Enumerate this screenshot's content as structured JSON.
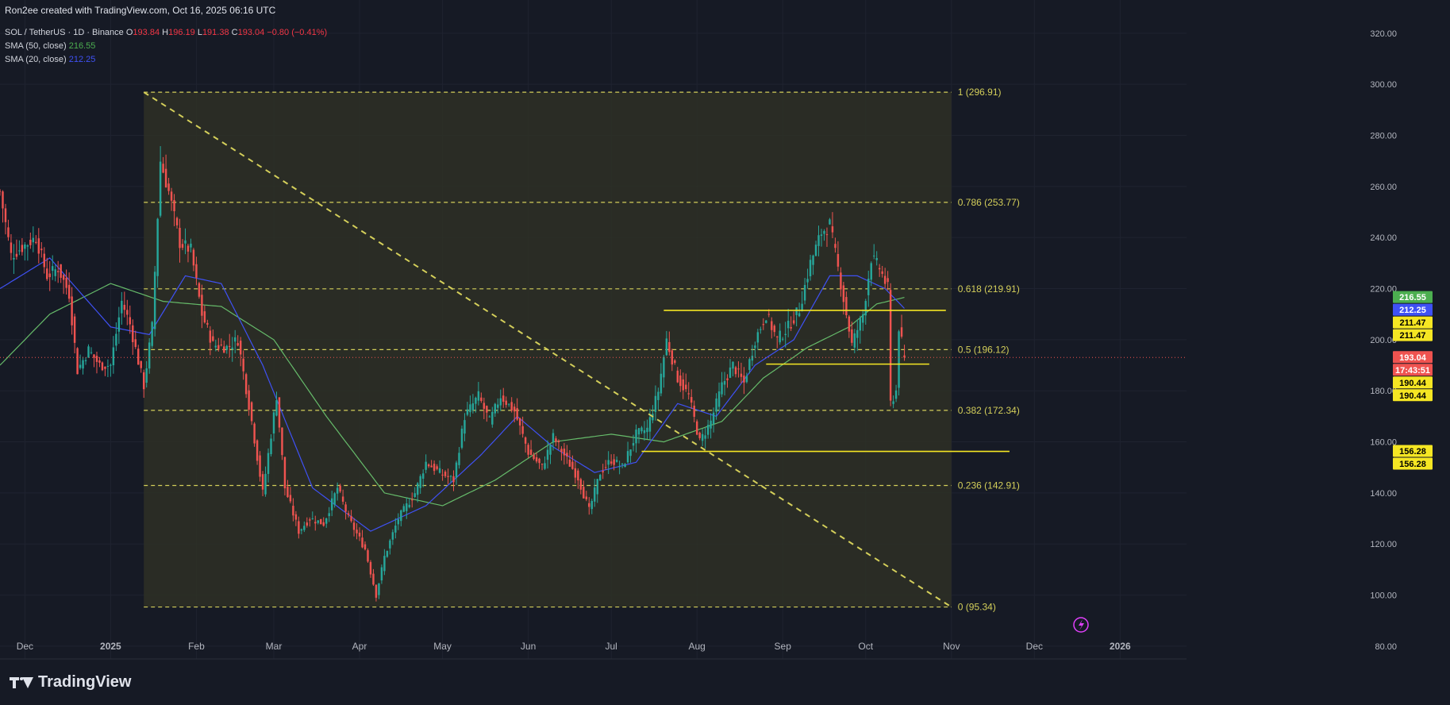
{
  "header": {
    "attribution": "Ron2ee created with TradingView.com, Oct 16, 2025 06:16 UTC",
    "symbol_line": "SOL / TetherUS · 1D · Binance",
    "ohlc": {
      "o_label": "O",
      "o": "193.84",
      "h_label": "H",
      "h": "196.19",
      "l_label": "L",
      "l": "191.38",
      "c_label": "C",
      "c": "193.04",
      "change": "−0.80 (−0.41%)"
    },
    "sma50_label": "SMA (50, close)",
    "sma50_value": "216.55",
    "sma20_label": "SMA (20, close)",
    "sma20_value": "212.25"
  },
  "brand": {
    "name": "TradingView"
  },
  "colors": {
    "background": "#161a25",
    "up": "#26a69a",
    "down": "#ef5350",
    "sma50": "#66bb6a",
    "sma20": "#3f51f5",
    "fib": "#d4cf5a",
    "fib_zone": "#2e3026",
    "support": "#f5e623",
    "price": "#ef5350"
  },
  "chart_data": {
    "type": "candlestick",
    "symbol": "SOL / TetherUS",
    "interval": "1D",
    "exchange": "Binance",
    "y_range": [
      75,
      333
    ],
    "y_ticks": [
      80,
      100,
      120,
      140,
      160,
      180,
      200,
      220,
      240,
      260,
      280,
      300,
      320
    ],
    "x_start": "2024-11-22",
    "x_end": "2026-01-25",
    "x_ticks": [
      {
        "date": "2024-12-01",
        "label": "Dec"
      },
      {
        "date": "2025-01-01",
        "label": "2025"
      },
      {
        "date": "2025-02-01",
        "label": "Feb"
      },
      {
        "date": "2025-03-01",
        "label": "Mar"
      },
      {
        "date": "2025-04-01",
        "label": "Apr"
      },
      {
        "date": "2025-05-01",
        "label": "May"
      },
      {
        "date": "2025-06-01",
        "label": "Jun"
      },
      {
        "date": "2025-07-01",
        "label": "Jul"
      },
      {
        "date": "2025-08-01",
        "label": "Aug"
      },
      {
        "date": "2025-09-01",
        "label": "Sep"
      },
      {
        "date": "2025-10-01",
        "label": "Oct"
      },
      {
        "date": "2025-11-01",
        "label": "Nov"
      },
      {
        "date": "2025-12-01",
        "label": "Dec"
      },
      {
        "date": "2026-01-01",
        "label": "2026"
      }
    ],
    "price_keypoints": [
      [
        "2024-11-22",
        258
      ],
      [
        "2024-11-26",
        233
      ],
      [
        "2024-12-01",
        237
      ],
      [
        "2024-12-05",
        240
      ],
      [
        "2024-12-09",
        225
      ],
      [
        "2024-12-13",
        228
      ],
      [
        "2024-12-17",
        218
      ],
      [
        "2024-12-20",
        188
      ],
      [
        "2024-12-24",
        196
      ],
      [
        "2024-12-28",
        190
      ],
      [
        "2025-01-01",
        190
      ],
      [
        "2025-01-05",
        215
      ],
      [
        "2025-01-08",
        206
      ],
      [
        "2025-01-13",
        182
      ],
      [
        "2025-01-16",
        205
      ],
      [
        "2025-01-19",
        270
      ],
      [
        "2025-01-22",
        258
      ],
      [
        "2025-01-26",
        238
      ],
      [
        "2025-01-30",
        235
      ],
      [
        "2025-02-03",
        210
      ],
      [
        "2025-02-07",
        198
      ],
      [
        "2025-02-12",
        197
      ],
      [
        "2025-02-16",
        200
      ],
      [
        "2025-02-21",
        168
      ],
      [
        "2025-02-25",
        140
      ],
      [
        "2025-03-02",
        178
      ],
      [
        "2025-03-05",
        142
      ],
      [
        "2025-03-10",
        125
      ],
      [
        "2025-03-14",
        130
      ],
      [
        "2025-03-19",
        128
      ],
      [
        "2025-03-24",
        142
      ],
      [
        "2025-03-28",
        130
      ],
      [
        "2025-04-03",
        118
      ],
      [
        "2025-04-07",
        100
      ],
      [
        "2025-04-10",
        115
      ],
      [
        "2025-04-15",
        130
      ],
      [
        "2025-04-21",
        140
      ],
      [
        "2025-04-25",
        152
      ],
      [
        "2025-04-30",
        148
      ],
      [
        "2025-05-05",
        145
      ],
      [
        "2025-05-09",
        170
      ],
      [
        "2025-05-14",
        178
      ],
      [
        "2025-05-18",
        168
      ],
      [
        "2025-05-22",
        178
      ],
      [
        "2025-05-27",
        172
      ],
      [
        "2025-06-01",
        156
      ],
      [
        "2025-06-06",
        150
      ],
      [
        "2025-06-10",
        162
      ],
      [
        "2025-06-15",
        153
      ],
      [
        "2025-06-19",
        146
      ],
      [
        "2025-06-23",
        133
      ],
      [
        "2025-06-27",
        148
      ],
      [
        "2025-07-01",
        153
      ],
      [
        "2025-07-05",
        150
      ],
      [
        "2025-07-10",
        163
      ],
      [
        "2025-07-14",
        165
      ],
      [
        "2025-07-18",
        180
      ],
      [
        "2025-07-21",
        200
      ],
      [
        "2025-07-25",
        185
      ],
      [
        "2025-07-29",
        178
      ],
      [
        "2025-08-02",
        160
      ],
      [
        "2025-08-06",
        168
      ],
      [
        "2025-08-10",
        182
      ],
      [
        "2025-08-14",
        190
      ],
      [
        "2025-08-18",
        183
      ],
      [
        "2025-08-22",
        200
      ],
      [
        "2025-08-26",
        210
      ],
      [
        "2025-08-30",
        200
      ],
      [
        "2025-09-03",
        205
      ],
      [
        "2025-09-07",
        212
      ],
      [
        "2025-09-11",
        230
      ],
      [
        "2025-09-15",
        242
      ],
      [
        "2025-09-18",
        245
      ],
      [
        "2025-09-22",
        222
      ],
      [
        "2025-09-26",
        198
      ],
      [
        "2025-09-30",
        210
      ],
      [
        "2025-10-03",
        232
      ],
      [
        "2025-10-06",
        228
      ],
      [
        "2025-10-09",
        220
      ],
      [
        "2025-10-10",
        175
      ],
      [
        "2025-10-12",
        180
      ],
      [
        "2025-10-13",
        205
      ],
      [
        "2025-10-15",
        193
      ]
    ],
    "sma50_keypoints": [
      [
        "2024-11-22",
        190
      ],
      [
        "2024-12-10",
        210
      ],
      [
        "2025-01-01",
        222
      ],
      [
        "2025-01-20",
        215
      ],
      [
        "2025-02-10",
        213
      ],
      [
        "2025-03-01",
        200
      ],
      [
        "2025-03-20",
        170
      ],
      [
        "2025-04-10",
        140
      ],
      [
        "2025-05-01",
        135
      ],
      [
        "2025-05-20",
        145
      ],
      [
        "2025-06-10",
        160
      ],
      [
        "2025-07-01",
        163
      ],
      [
        "2025-07-20",
        160
      ],
      [
        "2025-08-10",
        168
      ],
      [
        "2025-08-25",
        185
      ],
      [
        "2025-09-10",
        197
      ],
      [
        "2025-09-25",
        205
      ],
      [
        "2025-10-05",
        214
      ],
      [
        "2025-10-15",
        216.55
      ]
    ],
    "sma20_keypoints": [
      [
        "2024-11-22",
        220
      ],
      [
        "2024-12-10",
        232
      ],
      [
        "2025-01-01",
        205
      ],
      [
        "2025-01-15",
        202
      ],
      [
        "2025-01-28",
        225
      ],
      [
        "2025-02-10",
        222
      ],
      [
        "2025-02-25",
        190
      ],
      [
        "2025-03-15",
        142
      ],
      [
        "2025-04-05",
        125
      ],
      [
        "2025-04-25",
        135
      ],
      [
        "2025-05-15",
        155
      ],
      [
        "2025-05-28",
        170
      ],
      [
        "2025-06-10",
        158
      ],
      [
        "2025-06-25",
        148
      ],
      [
        "2025-07-10",
        152
      ],
      [
        "2025-07-25",
        175
      ],
      [
        "2025-08-08",
        170
      ],
      [
        "2025-08-22",
        190
      ],
      [
        "2025-09-05",
        200
      ],
      [
        "2025-09-18",
        225
      ],
      [
        "2025-09-28",
        225
      ],
      [
        "2025-10-08",
        220
      ],
      [
        "2025-10-15",
        212.25
      ]
    ],
    "fib_retracement": {
      "start": "2025-01-13",
      "end": "2025-11-01",
      "levels": [
        {
          "label": "1 (296.91)",
          "value": 296.91
        },
        {
          "label": "0.786 (253.77)",
          "value": 253.77
        },
        {
          "label": "0.618 (219.91)",
          "value": 219.91
        },
        {
          "label": "0.5 (196.12)",
          "value": 196.12
        },
        {
          "label": "0.382 (172.34)",
          "value": 172.34
        },
        {
          "label": "0.236 (142.91)",
          "value": 142.91
        },
        {
          "label": "0 (95.34)",
          "value": 95.34
        }
      ]
    },
    "trendline": {
      "from": [
        "2025-01-13",
        296.91
      ],
      "to": [
        "2025-11-01",
        95.34
      ]
    },
    "support_lines": [
      {
        "value": 211.47,
        "from": "2025-07-20",
        "to": "2025-10-30"
      },
      {
        "value": 190.44,
        "from": "2025-08-26",
        "to": "2025-10-24"
      },
      {
        "value": 156.28,
        "from": "2025-07-12",
        "to": "2025-11-22"
      }
    ],
    "price_labels": [
      {
        "text": "216.55",
        "value": 216.55,
        "color": "#4caf50",
        "text_color": "#ffffff"
      },
      {
        "text": "212.25",
        "value": 212.25,
        "color": "#3f51f5",
        "text_color": "#ffffff"
      },
      {
        "text": "211.47",
        "value": 211.47,
        "color": "#f5e623",
        "text_color": "#000000"
      },
      {
        "text": "211.47",
        "value": 211.47,
        "color": "#f5e623",
        "text_color": "#000000"
      },
      {
        "text": "193.04",
        "value": 193.04,
        "color": "#ef5350",
        "text_color": "#ffffff"
      },
      {
        "text": "17:43:51",
        "value": 193.04,
        "color": "#ef5350",
        "text_color": "#ffffff"
      },
      {
        "text": "190.44",
        "value": 190.44,
        "color": "#f5e623",
        "text_color": "#000000"
      },
      {
        "text": "190.44",
        "value": 190.44,
        "color": "#f5e623",
        "text_color": "#000000"
      },
      {
        "text": "156.28",
        "value": 156.28,
        "color": "#f5e623",
        "text_color": "#000000"
      },
      {
        "text": "156.28",
        "value": 156.28,
        "color": "#f5e623",
        "text_color": "#000000"
      }
    ],
    "last_price": 193.04
  }
}
